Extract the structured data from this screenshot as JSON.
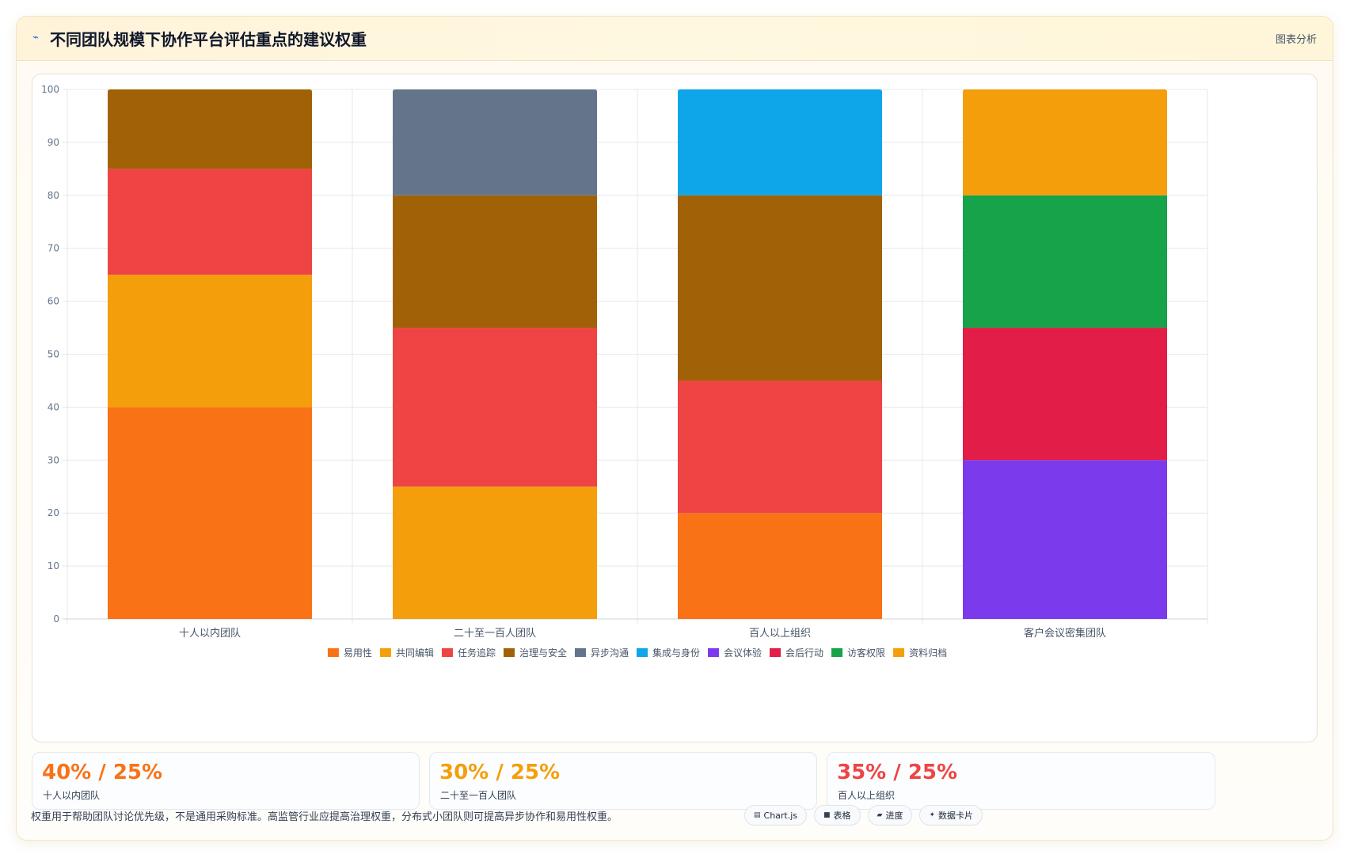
{
  "header": {
    "title": "不同团队规模下协作平台评估重点的建议权重",
    "icon": "sparkline-icon",
    "link_label": "图表分析"
  },
  "chart_data": {
    "type": "bar",
    "stacked": true,
    "categories": [
      "十人以内团队",
      "二十至一百人团队",
      "百人以上组织",
      "客户会议密集团队"
    ],
    "ylim": [
      0,
      100
    ],
    "yticks": [
      0,
      10,
      20,
      30,
      40,
      50,
      60,
      70,
      80,
      90,
      100
    ],
    "grid": true,
    "legend_position": "bottom",
    "series": [
      {
        "name": "易用性",
        "color": "#f97316",
        "values": [
          40,
          0,
          20,
          0
        ]
      },
      {
        "name": "共同编辑",
        "color": "#f59e0b",
        "values": [
          25,
          25,
          0,
          0
        ]
      },
      {
        "name": "任务追踪",
        "color": "#ef4444",
        "values": [
          20,
          30,
          25,
          0
        ]
      },
      {
        "name": "治理与安全",
        "color": "#a16207",
        "values": [
          15,
          25,
          35,
          0
        ]
      },
      {
        "name": "异步沟通",
        "color": "#64748b",
        "values": [
          0,
          20,
          0,
          0
        ]
      },
      {
        "name": "集成与身份",
        "color": "#0ea5e9",
        "values": [
          0,
          0,
          20,
          0
        ]
      },
      {
        "name": "会议体验",
        "color": "#7c3aed",
        "values": [
          0,
          0,
          0,
          30
        ]
      },
      {
        "name": "会后行动",
        "color": "#e11d48",
        "values": [
          0,
          0,
          0,
          25
        ]
      },
      {
        "name": "访客权限",
        "color": "#16a34a",
        "values": [
          0,
          0,
          0,
          25
        ]
      },
      {
        "name": "资料归档",
        "color": "#f59e0b",
        "values": [
          0,
          0,
          0,
          20
        ]
      }
    ]
  },
  "stats": [
    {
      "value": "40% / 25%",
      "label": "十人以内团队",
      "color": "#f97316"
    },
    {
      "value": "30% / 25%",
      "label": "二十至一百人团队",
      "color": "#f59e0b"
    },
    {
      "value": "35% / 25%",
      "label": "百人以上组织",
      "color": "#ef4444"
    }
  ],
  "footnote": "权重用于帮助团队讨论优先级，不是通用采购标准。高监管行业应提高治理权重，分布式小团队则可提高异步协作和易用性权重。",
  "chips": [
    {
      "icon": "chart-icon",
      "glyph": "▤",
      "label": "Chart.js"
    },
    {
      "icon": "table-icon",
      "glyph": "■",
      "label": "表格"
    },
    {
      "icon": "progress-icon",
      "glyph": "▰",
      "label": "进度"
    },
    {
      "icon": "sparkle-icon",
      "glyph": "✦",
      "label": "数据卡片"
    }
  ]
}
